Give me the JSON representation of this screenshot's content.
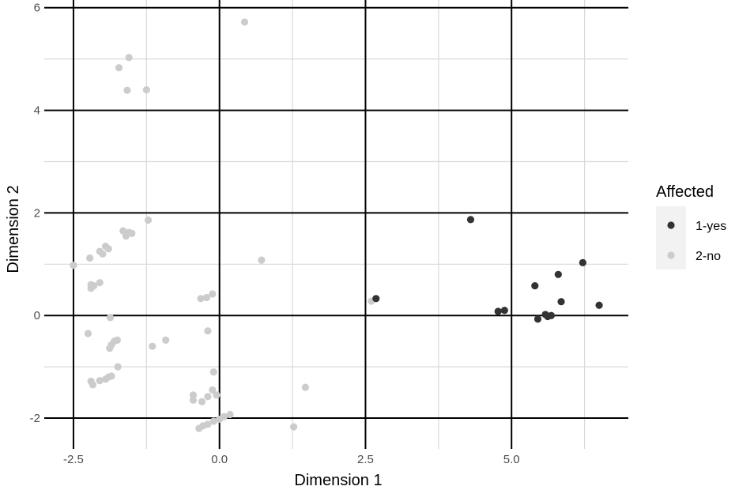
{
  "chart_data": {
    "type": "scatter",
    "xlabel": "Dimension 1",
    "ylabel": "Dimension 2",
    "xlim": [
      -3.0,
      7.0
    ],
    "ylim": [
      -2.6,
      6.15
    ],
    "x_ticks": [
      {
        "value": -2.5,
        "label": "-2.5"
      },
      {
        "value": 0.0,
        "label": "0.0"
      },
      {
        "value": 2.5,
        "label": "2.5"
      },
      {
        "value": 5.0,
        "label": "5.0"
      }
    ],
    "y_ticks": [
      {
        "value": -2,
        "label": "-2"
      },
      {
        "value": 0,
        "label": "0"
      },
      {
        "value": 2,
        "label": "2"
      },
      {
        "value": 4,
        "label": "4"
      },
      {
        "value": 6,
        "label": "6"
      }
    ],
    "x_minor": [
      -1.25,
      1.25,
      3.75,
      6.25
    ],
    "y_minor": [
      -1,
      1,
      3,
      5
    ],
    "grid": true,
    "legend": {
      "title": "Affected",
      "position": "right"
    },
    "series": [
      {
        "name": "1-yes",
        "color": "#333333",
        "points": [
          [
            4.3,
            1.87
          ],
          [
            2.68,
            0.33
          ],
          [
            4.77,
            0.08
          ],
          [
            4.88,
            0.1
          ],
          [
            5.4,
            0.58
          ],
          [
            5.45,
            -0.07
          ],
          [
            5.58,
            0.02
          ],
          [
            5.62,
            -0.02
          ],
          [
            5.68,
            0.0
          ],
          [
            5.8,
            0.8
          ],
          [
            5.85,
            0.27
          ],
          [
            6.22,
            1.03
          ],
          [
            6.5,
            0.2
          ]
        ]
      },
      {
        "name": "2-no",
        "color": "#cccccc",
        "points": [
          [
            0.43,
            5.72
          ],
          [
            -1.55,
            5.03
          ],
          [
            -1.72,
            4.83
          ],
          [
            -1.58,
            4.39
          ],
          [
            -1.25,
            4.4
          ],
          [
            -1.22,
            1.86
          ],
          [
            -1.65,
            1.65
          ],
          [
            -1.55,
            1.62
          ],
          [
            -1.6,
            1.55
          ],
          [
            -1.5,
            1.6
          ],
          [
            -2.5,
            0.98
          ],
          [
            -2.22,
            1.12
          ],
          [
            -2.05,
            1.25
          ],
          [
            -2.0,
            1.2
          ],
          [
            -1.95,
            1.35
          ],
          [
            -1.9,
            1.3
          ],
          [
            -2.2,
            0.6
          ],
          [
            -2.15,
            0.58
          ],
          [
            -2.2,
            0.53
          ],
          [
            -2.05,
            0.64
          ],
          [
            -1.87,
            -0.04
          ],
          [
            -2.25,
            -0.35
          ],
          [
            -1.75,
            -0.48
          ],
          [
            -1.8,
            -0.5
          ],
          [
            -1.85,
            -0.57
          ],
          [
            -1.88,
            -0.64
          ],
          [
            -1.15,
            -0.6
          ],
          [
            -0.92,
            -0.48
          ],
          [
            -1.74,
            -1.0
          ],
          [
            -1.85,
            -1.18
          ],
          [
            -1.9,
            -1.2
          ],
          [
            -1.95,
            -1.24
          ],
          [
            -2.05,
            -1.27
          ],
          [
            -2.2,
            -1.28
          ],
          [
            -2.17,
            -1.35
          ],
          [
            -0.32,
            0.33
          ],
          [
            -0.22,
            0.35
          ],
          [
            -0.12,
            0.42
          ],
          [
            -0.2,
            -0.3
          ],
          [
            0.72,
            1.08
          ],
          [
            2.6,
            0.28
          ],
          [
            -0.1,
            -1.1
          ],
          [
            -0.12,
            -1.45
          ],
          [
            -0.05,
            -1.55
          ],
          [
            -0.45,
            -1.55
          ],
          [
            -0.45,
            -1.65
          ],
          [
            -0.3,
            -1.68
          ],
          [
            -0.2,
            -1.58
          ],
          [
            -0.35,
            -2.2
          ],
          [
            -0.28,
            -2.15
          ],
          [
            -0.2,
            -2.12
          ],
          [
            -0.1,
            -2.06
          ],
          [
            0.0,
            -2.02
          ],
          [
            0.08,
            -1.97
          ],
          [
            0.18,
            -1.93
          ],
          [
            1.47,
            -1.4
          ],
          [
            1.27,
            -2.17
          ]
        ]
      }
    ]
  }
}
